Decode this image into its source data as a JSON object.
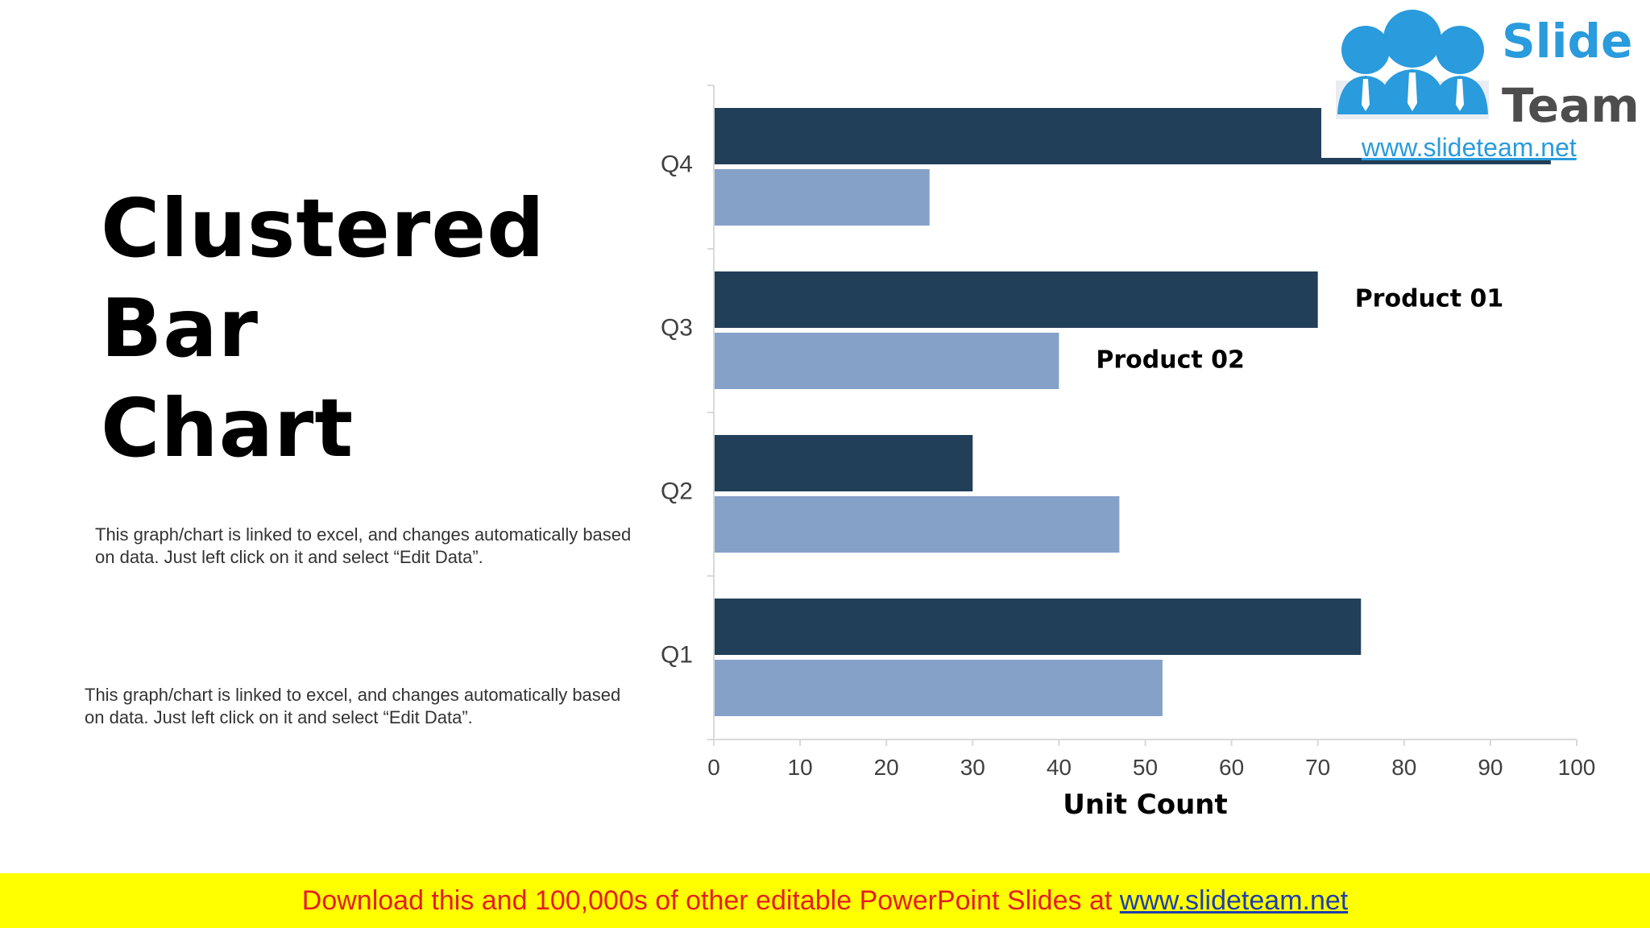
{
  "slide": {
    "title_line1": "Clustered",
    "title_line2": "Bar Chart",
    "description_1": "This graph/chart is linked to excel, and changes automatically based on data. Just left click on it and select “Edit Data”.",
    "description_2": "This graph/chart is linked to excel, and changes automatically based on data. Just left click on it and select “Edit Data”."
  },
  "logo": {
    "word1": "Slide",
    "word2": "Team",
    "url": "www.slideteam.net"
  },
  "footer": {
    "text": "Download this and 100,000s of other editable PowerPoint Slides at ",
    "link": "www.slideteam.net"
  },
  "colors": {
    "product_01": "#223f5a",
    "product_02": "#85a1c8",
    "axis": "#d9d9d9",
    "tick_label": "#404040"
  },
  "chart_data": {
    "type": "bar",
    "orientation": "horizontal",
    "categories": [
      "Q1",
      "Q2",
      "Q3",
      "Q4"
    ],
    "series": [
      {
        "name": "Product 01",
        "values": [
          75,
          30,
          70,
          97
        ]
      },
      {
        "name": "Product 02",
        "values": [
          52,
          47,
          40,
          25
        ]
      }
    ],
    "xlabel": "Unit Count",
    "ylabel": "",
    "xlim": [
      0,
      100
    ],
    "xticks": [
      0,
      10,
      20,
      30,
      40,
      50,
      60,
      70,
      80,
      90,
      100
    ],
    "grid": false,
    "legend": "inline labels on Q3 bars"
  }
}
